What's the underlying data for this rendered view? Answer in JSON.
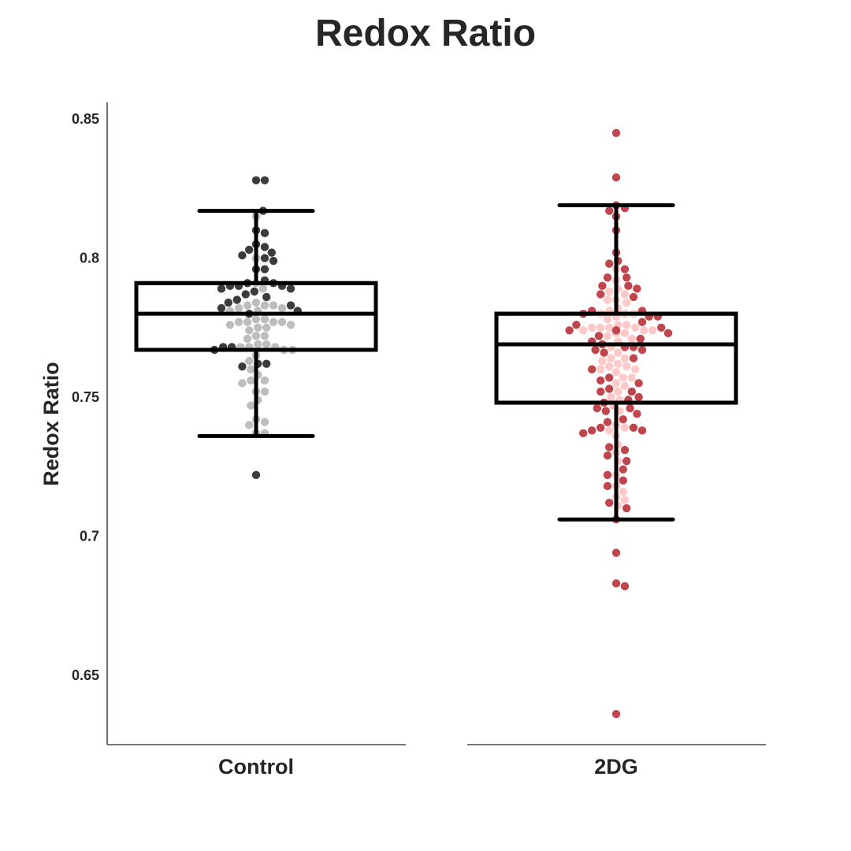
{
  "chart_data": {
    "type": "box",
    "title": "Redox Ratio",
    "ylabel": "Redox Ratio",
    "xlabel": "",
    "ylim": [
      0.625,
      0.856
    ],
    "yticks": [
      0.65,
      0.7,
      0.75,
      0.8,
      0.85
    ],
    "ytick_labels": [
      "0.65",
      "0.7",
      "0.75",
      "0.8",
      "0.85"
    ],
    "grid": false,
    "legend": "none",
    "categories": [
      "Control",
      "2DG"
    ],
    "boxes": [
      {
        "category": "Control",
        "whisker_low": 0.736,
        "q1": 0.767,
        "median": 0.78,
        "q3": 0.791,
        "whisker_high": 0.817
      },
      {
        "category": "2DG",
        "whisker_low": 0.706,
        "q1": 0.748,
        "median": 0.769,
        "q3": 0.78,
        "whisker_high": 0.819
      }
    ],
    "point_groups": [
      {
        "category": "Control",
        "color": "#3c3c3c",
        "values": [
          0.828,
          0.828,
          0.817,
          0.81,
          0.809,
          0.805,
          0.804,
          0.803,
          0.802,
          0.801,
          0.8,
          0.799,
          0.796,
          0.796,
          0.792,
          0.791,
          0.791,
          0.79,
          0.79,
          0.79,
          0.789,
          0.789,
          0.788,
          0.787,
          0.786,
          0.785,
          0.784,
          0.783,
          0.782,
          0.781,
          0.78,
          0.768,
          0.768,
          0.767,
          0.762,
          0.762,
          0.761,
          0.722
        ]
      },
      {
        "category": "Control",
        "color": "#bdbdbd",
        "values": [
          0.815,
          0.8,
          0.791,
          0.789,
          0.784,
          0.783,
          0.783,
          0.783,
          0.782,
          0.782,
          0.781,
          0.781,
          0.778,
          0.778,
          0.777,
          0.777,
          0.777,
          0.777,
          0.776,
          0.776,
          0.775,
          0.775,
          0.774,
          0.772,
          0.772,
          0.771,
          0.769,
          0.769,
          0.768,
          0.768,
          0.768,
          0.767,
          0.767,
          0.765,
          0.763,
          0.76,
          0.758,
          0.756,
          0.756,
          0.755,
          0.752,
          0.752,
          0.749,
          0.747,
          0.742,
          0.741,
          0.74,
          0.737,
          0.737
        ]
      },
      {
        "category": "2DG",
        "color": "#c0464d",
        "values": [
          0.845,
          0.829,
          0.819,
          0.818,
          0.817,
          0.815,
          0.81,
          0.802,
          0.799,
          0.798,
          0.796,
          0.793,
          0.793,
          0.79,
          0.79,
          0.789,
          0.787,
          0.786,
          0.781,
          0.781,
          0.78,
          0.779,
          0.779,
          0.777,
          0.776,
          0.775,
          0.774,
          0.774,
          0.774,
          0.773,
          0.772,
          0.771,
          0.77,
          0.769,
          0.768,
          0.768,
          0.767,
          0.767,
          0.766,
          0.764,
          0.76,
          0.757,
          0.756,
          0.755,
          0.753,
          0.752,
          0.752,
          0.75,
          0.749,
          0.748,
          0.746,
          0.746,
          0.745,
          0.744,
          0.742,
          0.741,
          0.739,
          0.739,
          0.738,
          0.738,
          0.737,
          0.732,
          0.731,
          0.729,
          0.727,
          0.724,
          0.722,
          0.72,
          0.718,
          0.712,
          0.71,
          0.706,
          0.694,
          0.683,
          0.682,
          0.636
        ]
      },
      {
        "category": "2DG",
        "color": "#ffc9c9",
        "values": [
          0.796,
          0.792,
          0.789,
          0.788,
          0.787,
          0.785,
          0.785,
          0.784,
          0.782,
          0.781,
          0.78,
          0.78,
          0.78,
          0.779,
          0.778,
          0.776,
          0.776,
          0.775,
          0.775,
          0.775,
          0.775,
          0.774,
          0.774,
          0.774,
          0.773,
          0.773,
          0.772,
          0.771,
          0.77,
          0.768,
          0.766,
          0.764,
          0.764,
          0.763,
          0.762,
          0.761,
          0.761,
          0.76,
          0.76,
          0.759,
          0.757,
          0.757,
          0.755,
          0.754,
          0.752,
          0.75,
          0.749,
          0.747,
          0.745,
          0.74,
          0.739,
          0.738,
          0.736,
          0.733,
          0.73,
          0.727,
          0.722,
          0.718,
          0.716,
          0.714,
          0.713,
          0.711
        ]
      }
    ]
  }
}
